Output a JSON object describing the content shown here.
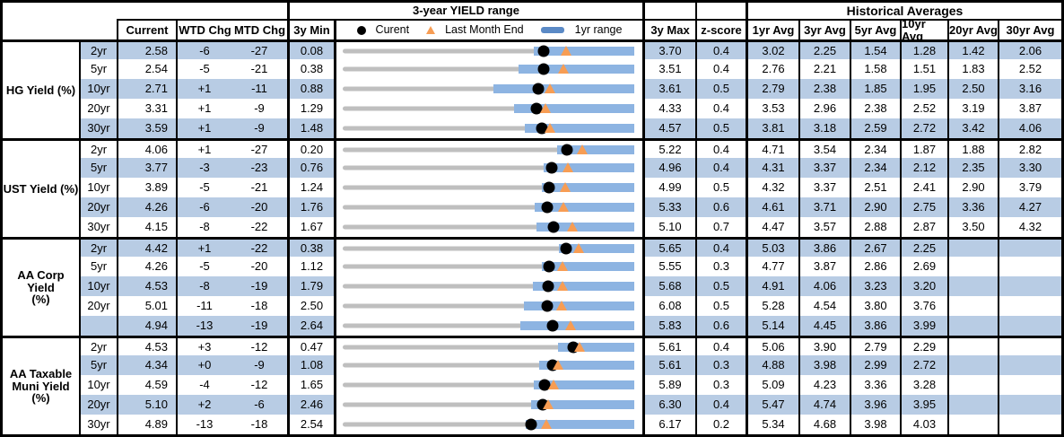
{
  "header": {
    "range_title": "3-year YIELD range",
    "hist_title": "Historical Averages",
    "col_current": "Current",
    "col_wtd": "WTD Chg",
    "col_mtd": "MTD Chg",
    "col_min": "3y Min",
    "col_max": "3y Max",
    "col_zscore": "z-score",
    "avg_cols": [
      "1yr Avg",
      "3yr Avg",
      "5yr Avg",
      "10yr Avg",
      "20yr Avg",
      "30yr Avg"
    ],
    "legend": {
      "current": "Curent",
      "last_month": "Last Month End",
      "range": "1yr range"
    }
  },
  "colors": {
    "row_stripe": "#b8cce4",
    "range_bar": "#8db4e2",
    "track_gray": "#bfbfbf",
    "triangle_orange": "#f79d54",
    "legend_bar_blue": "#5b8ac6",
    "current_dot": "#000000",
    "border": "#000000"
  },
  "chart_data": {
    "type": "bullet-range table",
    "value_unit": "percent yield",
    "encoding": {
      "gray_track": "3-year min to max range",
      "blue_bar": "1yr range (estimated from pixels, upper end = 3y Max)",
      "black_dot": "Current yield",
      "orange_triangle": "Last Month End = Current - MTD Chg (bp)/100"
    },
    "sections": [
      {
        "label_lines": [
          "HG Yield (%)"
        ],
        "rows": [
          {
            "tenor": "2yr",
            "current": "2.58",
            "wtd": "-6",
            "mtd": "-27",
            "min": "0.08",
            "max": "3.70",
            "z": "0.4",
            "avgs": [
              "3.02",
              "2.25",
              "1.54",
              "1.28",
              "1.42",
              "2.06"
            ],
            "bar1yr": [
              2.45,
              3.7
            ]
          },
          {
            "tenor": "5yr",
            "current": "2.54",
            "wtd": "-5",
            "mtd": "-21",
            "min": "0.38",
            "max": "3.51",
            "z": "0.4",
            "avgs": [
              "2.76",
              "2.21",
              "1.58",
              "1.51",
              "1.83",
              "2.52"
            ],
            "bar1yr": [
              2.27,
              3.51
            ]
          },
          {
            "tenor": "10yr",
            "current": "2.71",
            "wtd": "+1",
            "mtd": "-11",
            "min": "0.88",
            "max": "3.61",
            "z": "0.5",
            "avgs": [
              "2.79",
              "2.38",
              "1.85",
              "1.95",
              "2.50",
              "3.16"
            ],
            "bar1yr": [
              2.29,
              3.61
            ]
          },
          {
            "tenor": "20yr",
            "current": "3.31",
            "wtd": "+1",
            "mtd": "-9",
            "min": "1.29",
            "max": "4.33",
            "z": "0.4",
            "avgs": [
              "3.53",
              "2.96",
              "2.38",
              "2.52",
              "3.19",
              "3.87"
            ],
            "bar1yr": [
              3.08,
              4.33
            ]
          },
          {
            "tenor": "30yr",
            "current": "3.59",
            "wtd": "+1",
            "mtd": "-9",
            "min": "1.48",
            "max": "4.57",
            "z": "0.5",
            "avgs": [
              "3.81",
              "3.18",
              "2.59",
              "2.72",
              "3.42",
              "4.06"
            ],
            "bar1yr": [
              3.41,
              4.57
            ]
          }
        ]
      },
      {
        "label_lines": [
          "UST Yield (%)"
        ],
        "rows": [
          {
            "tenor": "2yr",
            "current": "4.06",
            "wtd": "+1",
            "mtd": "-27",
            "min": "0.20",
            "max": "5.22",
            "z": "0.4",
            "avgs": [
              "4.71",
              "3.54",
              "2.34",
              "1.87",
              "1.88",
              "2.82"
            ],
            "bar1yr": [
              3.89,
              5.22
            ]
          },
          {
            "tenor": "5yr",
            "current": "3.77",
            "wtd": "-3",
            "mtd": "-23",
            "min": "0.76",
            "max": "4.96",
            "z": "0.4",
            "avgs": [
              "4.31",
              "3.37",
              "2.34",
              "2.12",
              "2.35",
              "3.30"
            ],
            "bar1yr": [
              3.65,
              4.96
            ]
          },
          {
            "tenor": "10yr",
            "current": "3.89",
            "wtd": "-5",
            "mtd": "-21",
            "min": "1.24",
            "max": "4.99",
            "z": "0.5",
            "avgs": [
              "4.32",
              "3.37",
              "2.51",
              "2.41",
              "2.90",
              "3.79"
            ],
            "bar1yr": [
              3.8,
              4.99
            ]
          },
          {
            "tenor": "20yr",
            "current": "4.26",
            "wtd": "-6",
            "mtd": "-20",
            "min": "1.76",
            "max": "5.33",
            "z": "0.6",
            "avgs": [
              "4.61",
              "3.71",
              "2.90",
              "2.75",
              "3.36",
              "4.27"
            ],
            "bar1yr": [
              4.11,
              5.33
            ]
          },
          {
            "tenor": "30yr",
            "current": "4.15",
            "wtd": "-8",
            "mtd": "-22",
            "min": "1.67",
            "max": "5.10",
            "z": "0.7",
            "avgs": [
              "4.47",
              "3.57",
              "2.88",
              "2.87",
              "3.50",
              "4.32"
            ],
            "bar1yr": [
              3.95,
              5.1
            ]
          }
        ]
      },
      {
        "label_lines": [
          "AA Corp Yield",
          "(%)"
        ],
        "rows": [
          {
            "tenor": "2yr",
            "current": "4.42",
            "wtd": "+1",
            "mtd": "-22",
            "min": "0.38",
            "max": "5.65",
            "z": "0.4",
            "avgs": [
              "5.03",
              "3.86",
              "2.67",
              "2.25",
              "",
              ""
            ],
            "bar1yr": [
              4.28,
              5.65
            ]
          },
          {
            "tenor": "5yr",
            "current": "4.26",
            "wtd": "-5",
            "mtd": "-20",
            "min": "1.12",
            "max": "5.55",
            "z": "0.3",
            "avgs": [
              "4.77",
              "3.87",
              "2.86",
              "2.69",
              "",
              ""
            ],
            "bar1yr": [
              4.14,
              5.55
            ]
          },
          {
            "tenor": "10yr",
            "current": "4.53",
            "wtd": "-8",
            "mtd": "-19",
            "min": "1.79",
            "max": "5.68",
            "z": "0.5",
            "avgs": [
              "4.91",
              "4.06",
              "3.23",
              "3.20",
              "",
              ""
            ],
            "bar1yr": [
              4.33,
              5.68
            ]
          },
          {
            "tenor": "20yr",
            "current": "5.01",
            "wtd": "-11",
            "mtd": "-18",
            "min": "2.50",
            "max": "6.08",
            "z": "0.5",
            "avgs": [
              "5.28",
              "4.54",
              "3.80",
              "3.76",
              "",
              ""
            ],
            "bar1yr": [
              4.72,
              6.08
            ]
          },
          {
            "tenor": "",
            "current": "4.94",
            "wtd": "-13",
            "mtd": "-19",
            "min": "2.64",
            "max": "5.83",
            "z": "0.6",
            "avgs": [
              "5.14",
              "4.45",
              "3.86",
              "3.99",
              "",
              ""
            ],
            "bar1yr": [
              4.58,
              5.83
            ]
          }
        ]
      },
      {
        "label_lines": [
          "AA Taxable",
          "Muni Yield",
          "(%)"
        ],
        "rows": [
          {
            "tenor": "2yr",
            "current": "4.53",
            "wtd": "+3",
            "mtd": "-12",
            "min": "0.47",
            "max": "5.61",
            "z": "0.4",
            "avgs": [
              "5.06",
              "3.90",
              "2.79",
              "2.29",
              "",
              ""
            ],
            "bar1yr": [
              4.27,
              5.61
            ]
          },
          {
            "tenor": "5yr",
            "current": "4.34",
            "wtd": "+0",
            "mtd": "-9",
            "min": "1.08",
            "max": "5.61",
            "z": "0.3",
            "avgs": [
              "4.88",
              "3.98",
              "2.99",
              "2.72",
              "",
              ""
            ],
            "bar1yr": [
              4.13,
              5.61
            ]
          },
          {
            "tenor": "10yr",
            "current": "4.59",
            "wtd": "-4",
            "mtd": "-12",
            "min": "1.65",
            "max": "5.89",
            "z": "0.3",
            "avgs": [
              "5.09",
              "4.23",
              "3.36",
              "3.28",
              "",
              ""
            ],
            "bar1yr": [
              4.43,
              5.89
            ]
          },
          {
            "tenor": "20yr",
            "current": "5.10",
            "wtd": "+2",
            "mtd": "-6",
            "min": "2.46",
            "max": "6.30",
            "z": "0.4",
            "avgs": [
              "5.47",
              "4.74",
              "3.96",
              "3.95",
              "",
              ""
            ],
            "bar1yr": [
              4.94,
              6.3
            ]
          },
          {
            "tenor": "30yr",
            "current": "4.89",
            "wtd": "-13",
            "mtd": "-18",
            "min": "2.54",
            "max": "6.17",
            "z": "0.2",
            "avgs": [
              "5.34",
              "4.68",
              "3.98",
              "4.03",
              "",
              ""
            ],
            "bar1yr": [
              4.82,
              6.17
            ]
          }
        ]
      }
    ]
  }
}
